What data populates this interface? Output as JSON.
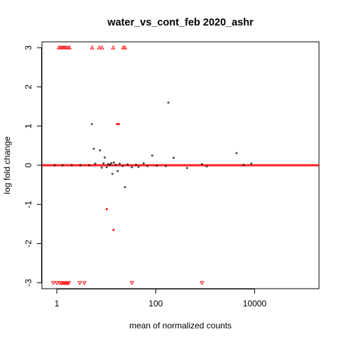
{
  "chart_data": {
    "type": "scatter",
    "title": "water_vs_cont_feb 2020_ashr",
    "xlabel": "mean of normalized counts",
    "ylabel": "log fold change",
    "x_scale": "log10",
    "xlim": [
      0.5,
      200000
    ],
    "ylim": [
      -3.15,
      3.15
    ],
    "x_ticks": [
      {
        "value": 1,
        "label": "1"
      },
      {
        "value": 100,
        "label": "100"
      },
      {
        "value": 10000,
        "label": "10000"
      }
    ],
    "y_ticks": [
      {
        "value": -3,
        "label": "-3"
      },
      {
        "value": -2,
        "label": "-2"
      },
      {
        "value": -1,
        "label": "-1"
      },
      {
        "value": 0,
        "label": "0"
      },
      {
        "value": 1,
        "label": "1"
      },
      {
        "value": 2,
        "label": "2"
      },
      {
        "value": 3,
        "label": "3"
      }
    ],
    "grid": false,
    "legend": "none",
    "colors": {
      "significant": "#ff0000",
      "nonsignificant": "#000000",
      "zero_line": "#ff0000",
      "axis": "#000000"
    },
    "reference_line": {
      "y": 0
    },
    "series": [
      {
        "points": [
          {
            "x": 0.9,
            "y": 0
          },
          {
            "x": 1.3,
            "y": 0
          },
          {
            "x": 2.0,
            "y": 0
          },
          {
            "x": 3.0,
            "y": 0
          },
          {
            "x": 4.5,
            "y": 0
          },
          {
            "x": 5.1,
            "y": 1.05
          },
          {
            "x": 5.6,
            "y": 0.42
          },
          {
            "x": 6.0,
            "y": 0.04
          },
          {
            "x": 7.5,
            "y": 0.38
          },
          {
            "x": 8.1,
            "y": -0.06
          },
          {
            "x": 8.8,
            "y": 0.05
          },
          {
            "x": 9.3,
            "y": 0.2
          },
          {
            "x": 10.2,
            "y": -0.05
          },
          {
            "x": 11.0,
            "y": 0.03
          },
          {
            "x": 11.8,
            "y": 0.01
          },
          {
            "x": 12.6,
            "y": 0.05
          },
          {
            "x": 13.3,
            "y": -0.22
          },
          {
            "x": 14.2,
            "y": 0.07
          },
          {
            "x": 15.5,
            "y": 0.01
          },
          {
            "x": 17.0,
            "y": -0.15
          },
          {
            "x": 18.7,
            "y": 0.04
          },
          {
            "x": 21.5,
            "y": -0.02
          },
          {
            "x": 24.0,
            "y": -0.56
          },
          {
            "x": 27.0,
            "y": 0.02
          },
          {
            "x": 33.0,
            "y": -0.05
          },
          {
            "x": 40.0,
            "y": 0.01
          },
          {
            "x": 45.0,
            "y": -0.04
          },
          {
            "x": 57.0,
            "y": 0.05
          },
          {
            "x": 68.0,
            "y": -0.02
          },
          {
            "x": 85.0,
            "y": 0.25
          },
          {
            "x": 105.0,
            "y": -0.01
          },
          {
            "x": 160.0,
            "y": -0.02
          },
          {
            "x": 180.0,
            "y": 1.6
          },
          {
            "x": 230.0,
            "y": 0.19
          },
          {
            "x": 430.0,
            "y": -0.07
          },
          {
            "x": 860.0,
            "y": 0.03
          },
          {
            "x": 1080.0,
            "y": -0.03
          },
          {
            "x": 4300.0,
            "y": 0.31
          },
          {
            "x": 6000.0,
            "y": 0.01
          },
          {
            "x": 8600.0,
            "y": 0.04
          }
        ]
      },
      {
        "points": [
          {
            "x": 1.1,
            "y": 3
          },
          {
            "x": 1.18,
            "y": 3
          },
          {
            "x": 1.27,
            "y": 3
          },
          {
            "x": 1.36,
            "y": 3
          },
          {
            "x": 1.45,
            "y": 3
          },
          {
            "x": 1.55,
            "y": 3
          },
          {
            "x": 1.68,
            "y": 3
          },
          {
            "x": 1.8,
            "y": 3
          },
          {
            "x": 5.2,
            "y": 3
          },
          {
            "x": 7.2,
            "y": 3
          },
          {
            "x": 8.2,
            "y": 3
          },
          {
            "x": 13.8,
            "y": 3
          },
          {
            "x": 22.0,
            "y": 3
          },
          {
            "x": 24.0,
            "y": 3
          },
          {
            "x": 16.5,
            "y": 1.05
          },
          {
            "x": 18.0,
            "y": 1.05
          },
          {
            "x": 10.2,
            "y": -1.12
          },
          {
            "x": 14.0,
            "y": -1.65
          },
          {
            "x": 0.85,
            "y": -3
          },
          {
            "x": 1.0,
            "y": -3
          },
          {
            "x": 1.15,
            "y": -3
          },
          {
            "x": 1.25,
            "y": -3
          },
          {
            "x": 1.32,
            "y": -3
          },
          {
            "x": 1.4,
            "y": -3
          },
          {
            "x": 1.48,
            "y": -3
          },
          {
            "x": 1.57,
            "y": -3
          },
          {
            "x": 1.66,
            "y": -3
          },
          {
            "x": 1.75,
            "y": -3
          },
          {
            "x": 2.9,
            "y": -3
          },
          {
            "x": 3.6,
            "y": -3
          },
          {
            "x": 33.0,
            "y": -3
          },
          {
            "x": 860.0,
            "y": -3
          }
        ]
      }
    ]
  }
}
